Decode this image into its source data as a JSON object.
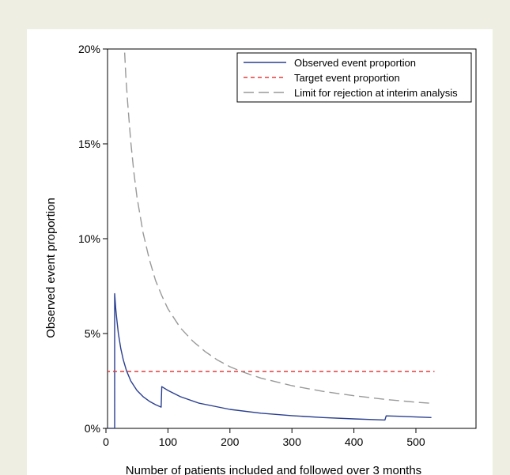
{
  "chart_data": {
    "type": "line",
    "xlabel": "Number of patients included and followed over 3 months",
    "ylabel": "Observed event proportion",
    "xlim": [
      0,
      530
    ],
    "ylim": [
      0,
      20
    ],
    "xticks": [
      {
        "value": 0,
        "label": "0"
      },
      {
        "value": 100,
        "label": "100"
      },
      {
        "value": 200,
        "label": "200"
      },
      {
        "value": 300,
        "label": "300"
      },
      {
        "value": 400,
        "label": "400"
      },
      {
        "value": 500,
        "label": "500"
      }
    ],
    "yticks": [
      {
        "value": 0,
        "label": "0%"
      },
      {
        "value": 5,
        "label": "5%"
      },
      {
        "value": 10,
        "label": "10%"
      },
      {
        "value": 15,
        "label": "15%"
      },
      {
        "value": 20,
        "label": "20%"
      }
    ],
    "legend_position": "top-right",
    "series": [
      {
        "name": "Observed event proportion",
        "color": "#2a3f8f",
        "style": "solid",
        "points": [
          [
            0,
            0
          ],
          [
            14,
            0
          ],
          [
            14,
            7.1
          ],
          [
            16,
            6.25
          ],
          [
            18,
            5.6
          ],
          [
            20,
            5.0
          ],
          [
            24,
            4.2
          ],
          [
            28,
            3.6
          ],
          [
            33,
            3.05
          ],
          [
            40,
            2.5
          ],
          [
            50,
            2.0
          ],
          [
            60,
            1.67
          ],
          [
            70,
            1.43
          ],
          [
            80,
            1.25
          ],
          [
            89,
            1.12
          ],
          [
            90,
            2.2
          ],
          [
            100,
            2.0
          ],
          [
            120,
            1.67
          ],
          [
            150,
            1.33
          ],
          [
            200,
            1.0
          ],
          [
            250,
            0.8
          ],
          [
            300,
            0.67
          ],
          [
            350,
            0.57
          ],
          [
            400,
            0.5
          ],
          [
            450,
            0.44
          ],
          [
            452,
            0.66
          ],
          [
            480,
            0.63
          ],
          [
            525,
            0.57
          ]
        ]
      },
      {
        "name": "Target event proportion",
        "color": "#e33b3b",
        "style": "short-dash",
        "points": [
          [
            0,
            3.0
          ],
          [
            530,
            3.0
          ]
        ]
      },
      {
        "name": "Limit for rejection at interim analysis",
        "color": "#999999",
        "style": "long-dash",
        "points": [
          [
            29,
            20.6
          ],
          [
            32,
            18.6
          ],
          [
            35,
            17.2
          ],
          [
            40,
            15.1
          ],
          [
            45,
            13.5
          ],
          [
            50,
            12.2
          ],
          [
            60,
            10.3
          ],
          [
            70,
            8.9
          ],
          [
            80,
            7.8
          ],
          [
            90,
            7.0
          ],
          [
            100,
            6.3
          ],
          [
            120,
            5.3
          ],
          [
            140,
            4.6
          ],
          [
            160,
            4.05
          ],
          [
            180,
            3.6
          ],
          [
            200,
            3.25
          ],
          [
            220,
            2.98
          ],
          [
            250,
            2.65
          ],
          [
            300,
            2.25
          ],
          [
            350,
            1.95
          ],
          [
            400,
            1.72
          ],
          [
            450,
            1.53
          ],
          [
            500,
            1.38
          ],
          [
            525,
            1.32
          ]
        ]
      }
    ]
  }
}
